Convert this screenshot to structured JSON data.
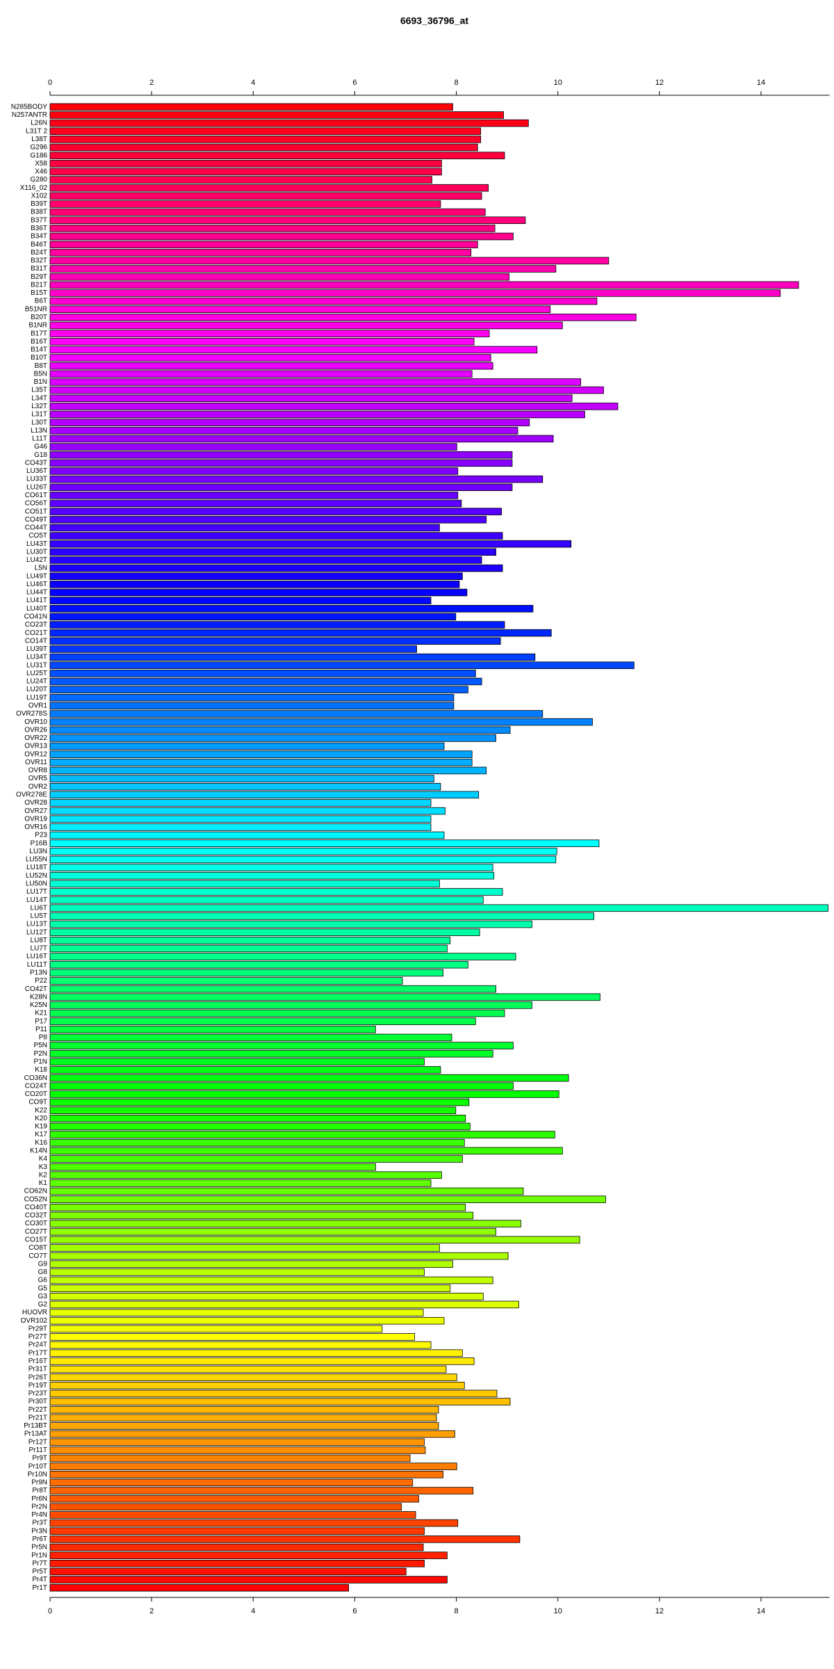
{
  "chart_data": {
    "type": "bar",
    "orientation": "horizontal",
    "title": "6693_36796_at",
    "categories": [
      "N285BODY",
      "N257ANTR",
      "L26N",
      "L31T 2",
      "L38T",
      "G296",
      "G186",
      "X58",
      "X46",
      "G280",
      "X116_02",
      "X102",
      "B39T",
      "B38T",
      "B37T",
      "B36T",
      "B34T",
      "B46T",
      "B24T",
      "B32T",
      "B31T",
      "B29T",
      "B21T",
      "B15T",
      "B6T",
      "B51NR",
      "B20T",
      "B1NR",
      "B17T",
      "B16T",
      "B14T",
      "B10T",
      "B8T",
      "B5N",
      "B1N",
      "L35T",
      "L34T",
      "L32T",
      "L31T",
      "L30T",
      "L13N",
      "L11T",
      "G46",
      "G18",
      "CO43T",
      "LU36T",
      "LU33T",
      "LU26T",
      "CO61T",
      "CO56T",
      "CO51T",
      "CO49T",
      "CO44T",
      "CO5T",
      "LU43T",
      "LU30T",
      "LU42T",
      "L5N",
      "LU49T",
      "LU46T",
      "LU44T",
      "LU41T",
      "LU40T",
      "CO41N",
      "CO23T",
      "CO21T",
      "CO14T",
      "LU39T",
      "LU34T",
      "LU31T",
      "LU25T",
      "LU24T",
      "LU20T",
      "LU19T",
      "OVR1",
      "OVR278S",
      "OVR10",
      "OVR26",
      "OVR22",
      "OVR13",
      "OVR12",
      "OVR11",
      "OVR8",
      "OVR5",
      "OVR2",
      "OVR278E",
      "OVR28",
      "OVR27",
      "OVR19",
      "OVR16",
      "P23",
      "P16B",
      "LU3N",
      "LU55N",
      "LU18T",
      "LU52N",
      "LU50N",
      "LU17T",
      "LU14T",
      "LU6T",
      "LU5T",
      "LU13T",
      "LU12T",
      "LU8T",
      "LU7T",
      "LU16T",
      "LU11T",
      "P13N",
      "P22",
      "CO42T",
      "K28N",
      "K25N",
      "K21",
      "P17",
      "P11",
      "P8",
      "P5N",
      "P2N",
      "P1N",
      "K18",
      "CO36N",
      "CO24T",
      "CO20T",
      "CO9T",
      "K22",
      "K20",
      "K19",
      "K17",
      "K16",
      "K14N",
      "K4",
      "K3",
      "K2",
      "K1",
      "CO62N",
      "CO52N",
      "CO40T",
      "CO32T",
      "CO30T",
      "CO27T",
      "CO15T",
      "CO8T",
      "CO7T",
      "G9",
      "G8",
      "G6",
      "G5",
      "G3",
      "G2",
      "HUOVR",
      "OVR102",
      "Pr29T",
      "Pr27T",
      "Pr24T",
      "Pr17T",
      "Pr16T",
      "Pr31T",
      "Pr26T",
      "Pr19T",
      "Pr23T",
      "Pr30T",
      "Pr22T",
      "Pr21T",
      "Pr13BT",
      "Pr13AT",
      "Pr12T",
      "Pr11T",
      "Pr9T",
      "Pr10T",
      "Pr10N",
      "Pr9N",
      "Pr8T",
      "Pr6N",
      "Pr2N",
      "Pr4N",
      "Pr3T",
      "Pr3N",
      "Pr6T",
      "Pr5N",
      "Pr1N",
      "Pr7T",
      "Pr5T",
      "Pr4T",
      "Pr1T"
    ],
    "values": [
      7.93,
      8.93,
      9.42,
      8.48,
      8.48,
      8.42,
      8.95,
      7.71,
      7.71,
      7.52,
      8.63,
      8.5,
      7.69,
      8.57,
      9.36,
      8.76,
      9.12,
      8.42,
      8.29,
      11.0,
      9.96,
      9.04,
      14.74,
      14.38,
      10.77,
      9.85,
      11.54,
      10.09,
      8.65,
      8.35,
      9.59,
      8.68,
      8.72,
      8.31,
      10.45,
      10.9,
      10.28,
      11.18,
      10.53,
      9.44,
      9.21,
      9.91,
      8.01,
      9.1,
      9.1,
      8.03,
      9.7,
      9.1,
      8.03,
      8.1,
      8.89,
      8.59,
      7.67,
      8.91,
      10.26,
      8.78,
      8.5,
      8.91,
      8.12,
      8.06,
      8.21,
      7.5,
      9.51,
      7.99,
      8.95,
      9.87,
      8.87,
      7.22,
      9.55,
      11.5,
      8.38,
      8.5,
      8.23,
      7.95,
      7.95,
      9.7,
      10.68,
      9.06,
      8.78,
      7.76,
      8.31,
      8.31,
      8.59,
      7.56,
      7.69,
      8.44,
      7.5,
      7.78,
      7.5,
      7.5,
      7.76,
      10.81,
      9.98,
      9.96,
      8.72,
      8.74,
      7.67,
      8.91,
      8.53,
      15.32,
      10.71,
      9.49,
      8.46,
      7.88,
      7.82,
      9.17,
      8.23,
      7.74,
      6.94,
      8.78,
      10.83,
      9.49,
      8.95,
      8.38,
      6.41,
      7.91,
      9.12,
      8.72,
      7.37,
      7.69,
      10.21,
      9.12,
      10.02,
      8.25,
      7.99,
      8.18,
      8.27,
      9.94,
      8.16,
      10.09,
      8.12,
      6.41,
      7.71,
      7.5,
      9.32,
      10.94,
      8.18,
      8.33,
      9.27,
      8.78,
      10.43,
      7.67,
      9.02,
      7.93,
      7.37,
      8.72,
      7.88,
      8.53,
      9.23,
      7.35,
      7.76,
      6.54,
      7.18,
      7.5,
      8.12,
      8.35,
      7.8,
      8.01,
      8.16,
      8.8,
      9.06,
      7.65,
      7.61,
      7.65,
      7.97,
      7.37,
      7.39,
      7.09,
      8.01,
      7.74,
      7.14,
      8.33,
      7.26,
      6.92,
      7.2,
      8.03,
      7.37,
      9.25,
      7.35,
      7.82,
      7.37,
      7.01,
      7.82,
      5.88
    ],
    "color_map": "rainbow",
    "xlim": [
      0,
      15.35
    ],
    "xticks": [
      0,
      2,
      4,
      6,
      8,
      10,
      12,
      14
    ]
  }
}
